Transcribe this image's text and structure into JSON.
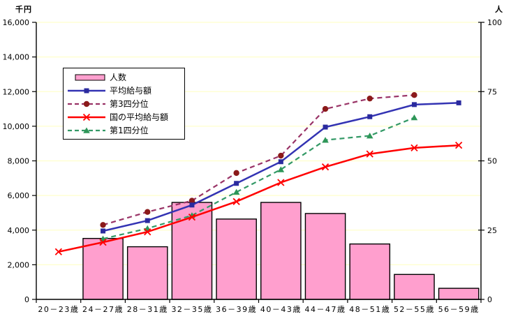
{
  "axis_titles": {
    "left": "千円",
    "right": "人"
  },
  "legend": {
    "items": [
      "人数",
      "平均給与額",
      "第3四分位",
      "国の平均給与額",
      "第1四分位"
    ]
  },
  "chart_data": {
    "type": "combo-bar-line",
    "title": "",
    "categories": [
      "20－23歳",
      "24－27歳",
      "28－31歳",
      "32－35歳",
      "36－39歳",
      "40－43歳",
      "44－47歳",
      "48－51歳",
      "52－55歳",
      "56－59歳"
    ],
    "left_axis": {
      "title": "千円",
      "min": 0,
      "max": 16000,
      "step": 2000,
      "tick_labels": [
        "0",
        "2,000",
        "4,000",
        "6,000",
        "8,000",
        "10,000",
        "12,000",
        "14,000",
        "16,000"
      ]
    },
    "right_axis": {
      "title": "人",
      "min": 0,
      "max": 100,
      "step": 25,
      "tick_labels": [
        "0",
        "25",
        "50",
        "75",
        "100"
      ]
    },
    "grid_color": "#FFFFCC",
    "background_color": "#FFFFFF",
    "legend_position": "inside-upper-left",
    "series": [
      {
        "name": "人数",
        "type": "bar",
        "axis": "right",
        "fill": "#FF9FCE",
        "stroke": "#000000",
        "values": [
          0,
          22,
          19,
          35,
          29,
          35,
          31,
          20,
          9,
          4
        ]
      },
      {
        "name": "平均給与額",
        "type": "line",
        "axis": "left",
        "color": "#3333B3",
        "marker": "square",
        "marker_color": "#2A2A9E",
        "dashed": false,
        "values": [
          null,
          3950,
          4550,
          5450,
          6700,
          7950,
          9950,
          10550,
          11250,
          11350
        ]
      },
      {
        "name": "第3四分位",
        "type": "line",
        "axis": "left",
        "color": "#993366",
        "marker": "circle",
        "marker_color": "#8B1A1A",
        "dashed": true,
        "values": [
          null,
          4300,
          5050,
          5700,
          7300,
          8300,
          11000,
          11600,
          11800,
          null
        ]
      },
      {
        "name": "国の平均給与額",
        "type": "line",
        "axis": "left",
        "color": "#FF0000",
        "marker": "x",
        "marker_color": "#FF0000",
        "dashed": false,
        "values": [
          2750,
          3300,
          3900,
          4750,
          5650,
          6750,
          7650,
          8400,
          8750,
          8900
        ]
      },
      {
        "name": "第1四分位",
        "type": "line",
        "axis": "left",
        "color": "#339966",
        "marker": "triangle",
        "marker_color": "#2E9658",
        "dashed": true,
        "values": [
          null,
          3500,
          4100,
          4850,
          6200,
          7500,
          9200,
          9450,
          10500,
          null
        ]
      }
    ],
    "paint_order": [
      0,
      2,
      4,
      1,
      3
    ]
  }
}
